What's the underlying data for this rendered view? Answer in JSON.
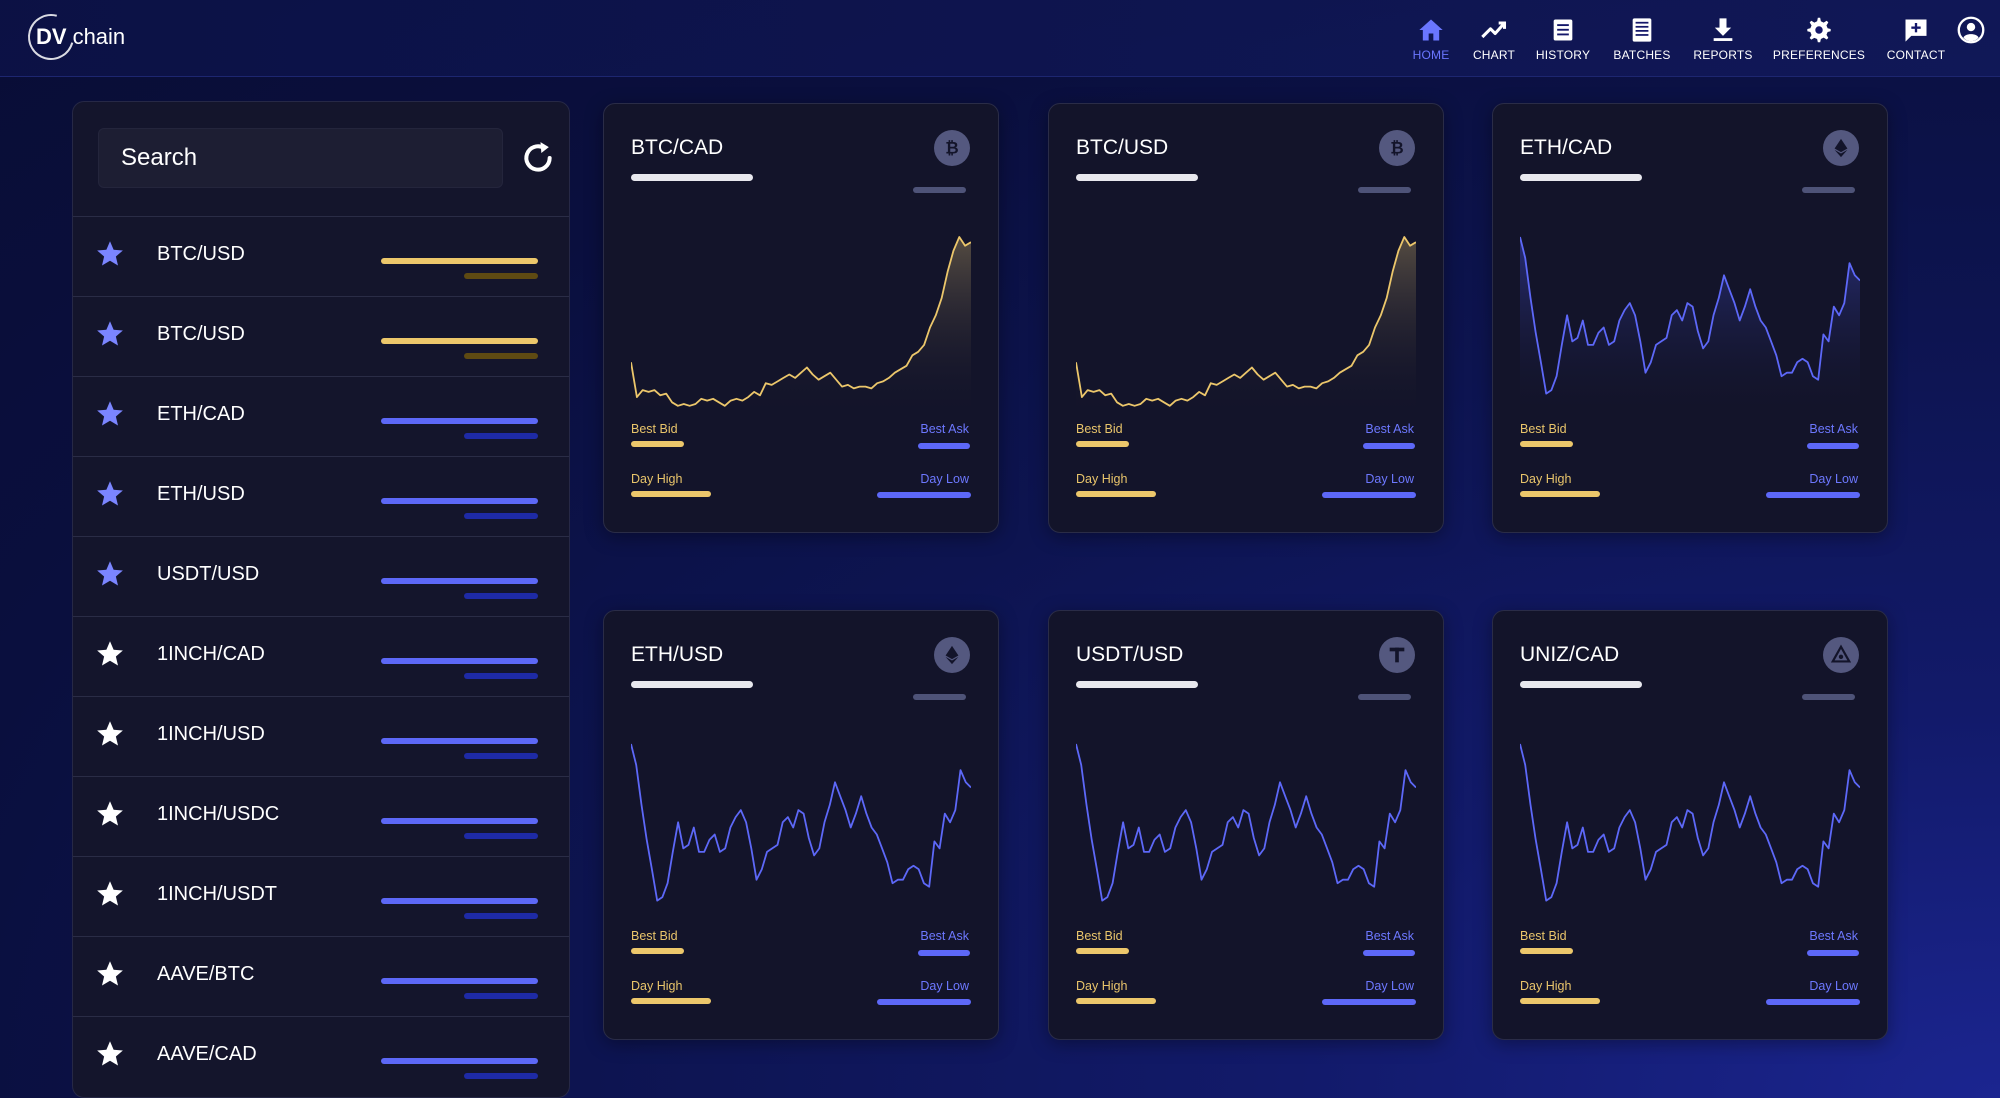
{
  "header": {
    "logo_bold": "DV",
    "logo_text": "chain",
    "nav": [
      {
        "label": "HOME",
        "icon": "home-icon",
        "active": true
      },
      {
        "label": "CHART",
        "icon": "chart-icon",
        "active": false
      },
      {
        "label": "HISTORY",
        "icon": "history-icon",
        "active": false
      },
      {
        "label": "BATCHES",
        "icon": "batches-icon",
        "active": false
      },
      {
        "label": "REPORTS",
        "icon": "download-icon",
        "active": false
      },
      {
        "label": "PREFERENCES",
        "icon": "gear-icon",
        "active": false
      },
      {
        "label": "CONTACT",
        "icon": "contact-icon",
        "active": false
      }
    ],
    "account_icon": "account-icon"
  },
  "sidebar": {
    "search_placeholder": "Search",
    "refresh_icon": "refresh-icon",
    "items": [
      {
        "pair": "BTC/USD",
        "favorite": true,
        "tone": "yellow"
      },
      {
        "pair": "BTC/USD",
        "favorite": true,
        "tone": "yellow"
      },
      {
        "pair": "ETH/CAD",
        "favorite": true,
        "tone": "blue"
      },
      {
        "pair": "ETH/USD",
        "favorite": true,
        "tone": "blue"
      },
      {
        "pair": "USDT/USD",
        "favorite": true,
        "tone": "blue"
      },
      {
        "pair": "1INCH/CAD",
        "favorite": false,
        "tone": "blue"
      },
      {
        "pair": "1INCH/USD",
        "favorite": false,
        "tone": "blue"
      },
      {
        "pair": "1INCH/USDC",
        "favorite": false,
        "tone": "blue"
      },
      {
        "pair": "1INCH/USDT",
        "favorite": false,
        "tone": "blue"
      },
      {
        "pair": "AAVE/BTC",
        "favorite": false,
        "tone": "blue"
      },
      {
        "pair": "AAVE/CAD",
        "favorite": false,
        "tone": "blue"
      }
    ]
  },
  "cards": [
    {
      "pair": "BTC/CAD",
      "coin": "bitcoin-icon",
      "tone": "yellow",
      "series": "a",
      "best_bid": "Best Bid",
      "best_ask": "Best Ask",
      "day_high": "Day High",
      "day_low": "Day Low"
    },
    {
      "pair": "BTC/USD",
      "coin": "bitcoin-icon",
      "tone": "yellow",
      "series": "a",
      "best_bid": "Best Bid",
      "best_ask": "Best Ask",
      "day_high": "Day High",
      "day_low": "Day Low"
    },
    {
      "pair": "ETH/CAD",
      "coin": "ethereum-icon",
      "tone": "blue",
      "series": "b",
      "best_bid": "Best Bid",
      "best_ask": "Best Ask",
      "day_high": "Day High",
      "day_low": "Day Low"
    },
    {
      "pair": "ETH/USD",
      "coin": "ethereum-icon",
      "tone": "blue",
      "series": "b",
      "best_bid": "Best Bid",
      "best_ask": "Best Ask",
      "day_high": "Day High",
      "day_low": "Day Low"
    },
    {
      "pair": "USDT/USD",
      "coin": "tether-icon",
      "tone": "blue",
      "series": "b",
      "best_bid": "Best Bid",
      "best_ask": "Best Ask",
      "day_high": "Day High",
      "day_low": "Day Low"
    },
    {
      "pair": "UNIZ/CAD",
      "coin": "uniz-icon",
      "tone": "blue",
      "series": "b",
      "best_bid": "Best Bid",
      "best_ask": "Best Ask",
      "day_high": "Day High",
      "day_low": "Day Low"
    }
  ],
  "sparklines": {
    "a": [
      28,
      8,
      12,
      11,
      12,
      9,
      10,
      5,
      3,
      4,
      3,
      4,
      7,
      6,
      7,
      5,
      3,
      6,
      7,
      6,
      8,
      11,
      9,
      16,
      15,
      17,
      19,
      21,
      19,
      22,
      25,
      21,
      18,
      20,
      22,
      18,
      14,
      15,
      13,
      14,
      14,
      13,
      16,
      17,
      19,
      22,
      24,
      26,
      32,
      34,
      38,
      48,
      55,
      65,
      80,
      92,
      100,
      95,
      97
    ],
    "b": [
      100,
      88,
      65,
      45,
      28,
      10,
      12,
      20,
      38,
      55,
      40,
      42,
      52,
      38,
      38,
      45,
      48,
      38,
      40,
      52,
      58,
      62,
      55,
      40,
      22,
      28,
      38,
      40,
      42,
      55,
      58,
      52,
      62,
      60,
      46,
      36,
      40,
      55,
      65,
      78,
      70,
      62,
      52,
      60,
      70,
      60,
      52,
      48,
      40,
      32,
      20,
      22,
      22,
      28,
      30,
      28,
      20,
      18,
      44,
      40,
      60,
      55,
      62,
      85,
      78,
      75
    ]
  },
  "colors": {
    "yellow": "#ecc76b",
    "yellow_dim": "#5e4a12",
    "blue": "#5d68f8",
    "blue_dim": "#1e2aa6",
    "accent": "#6a76ff"
  }
}
